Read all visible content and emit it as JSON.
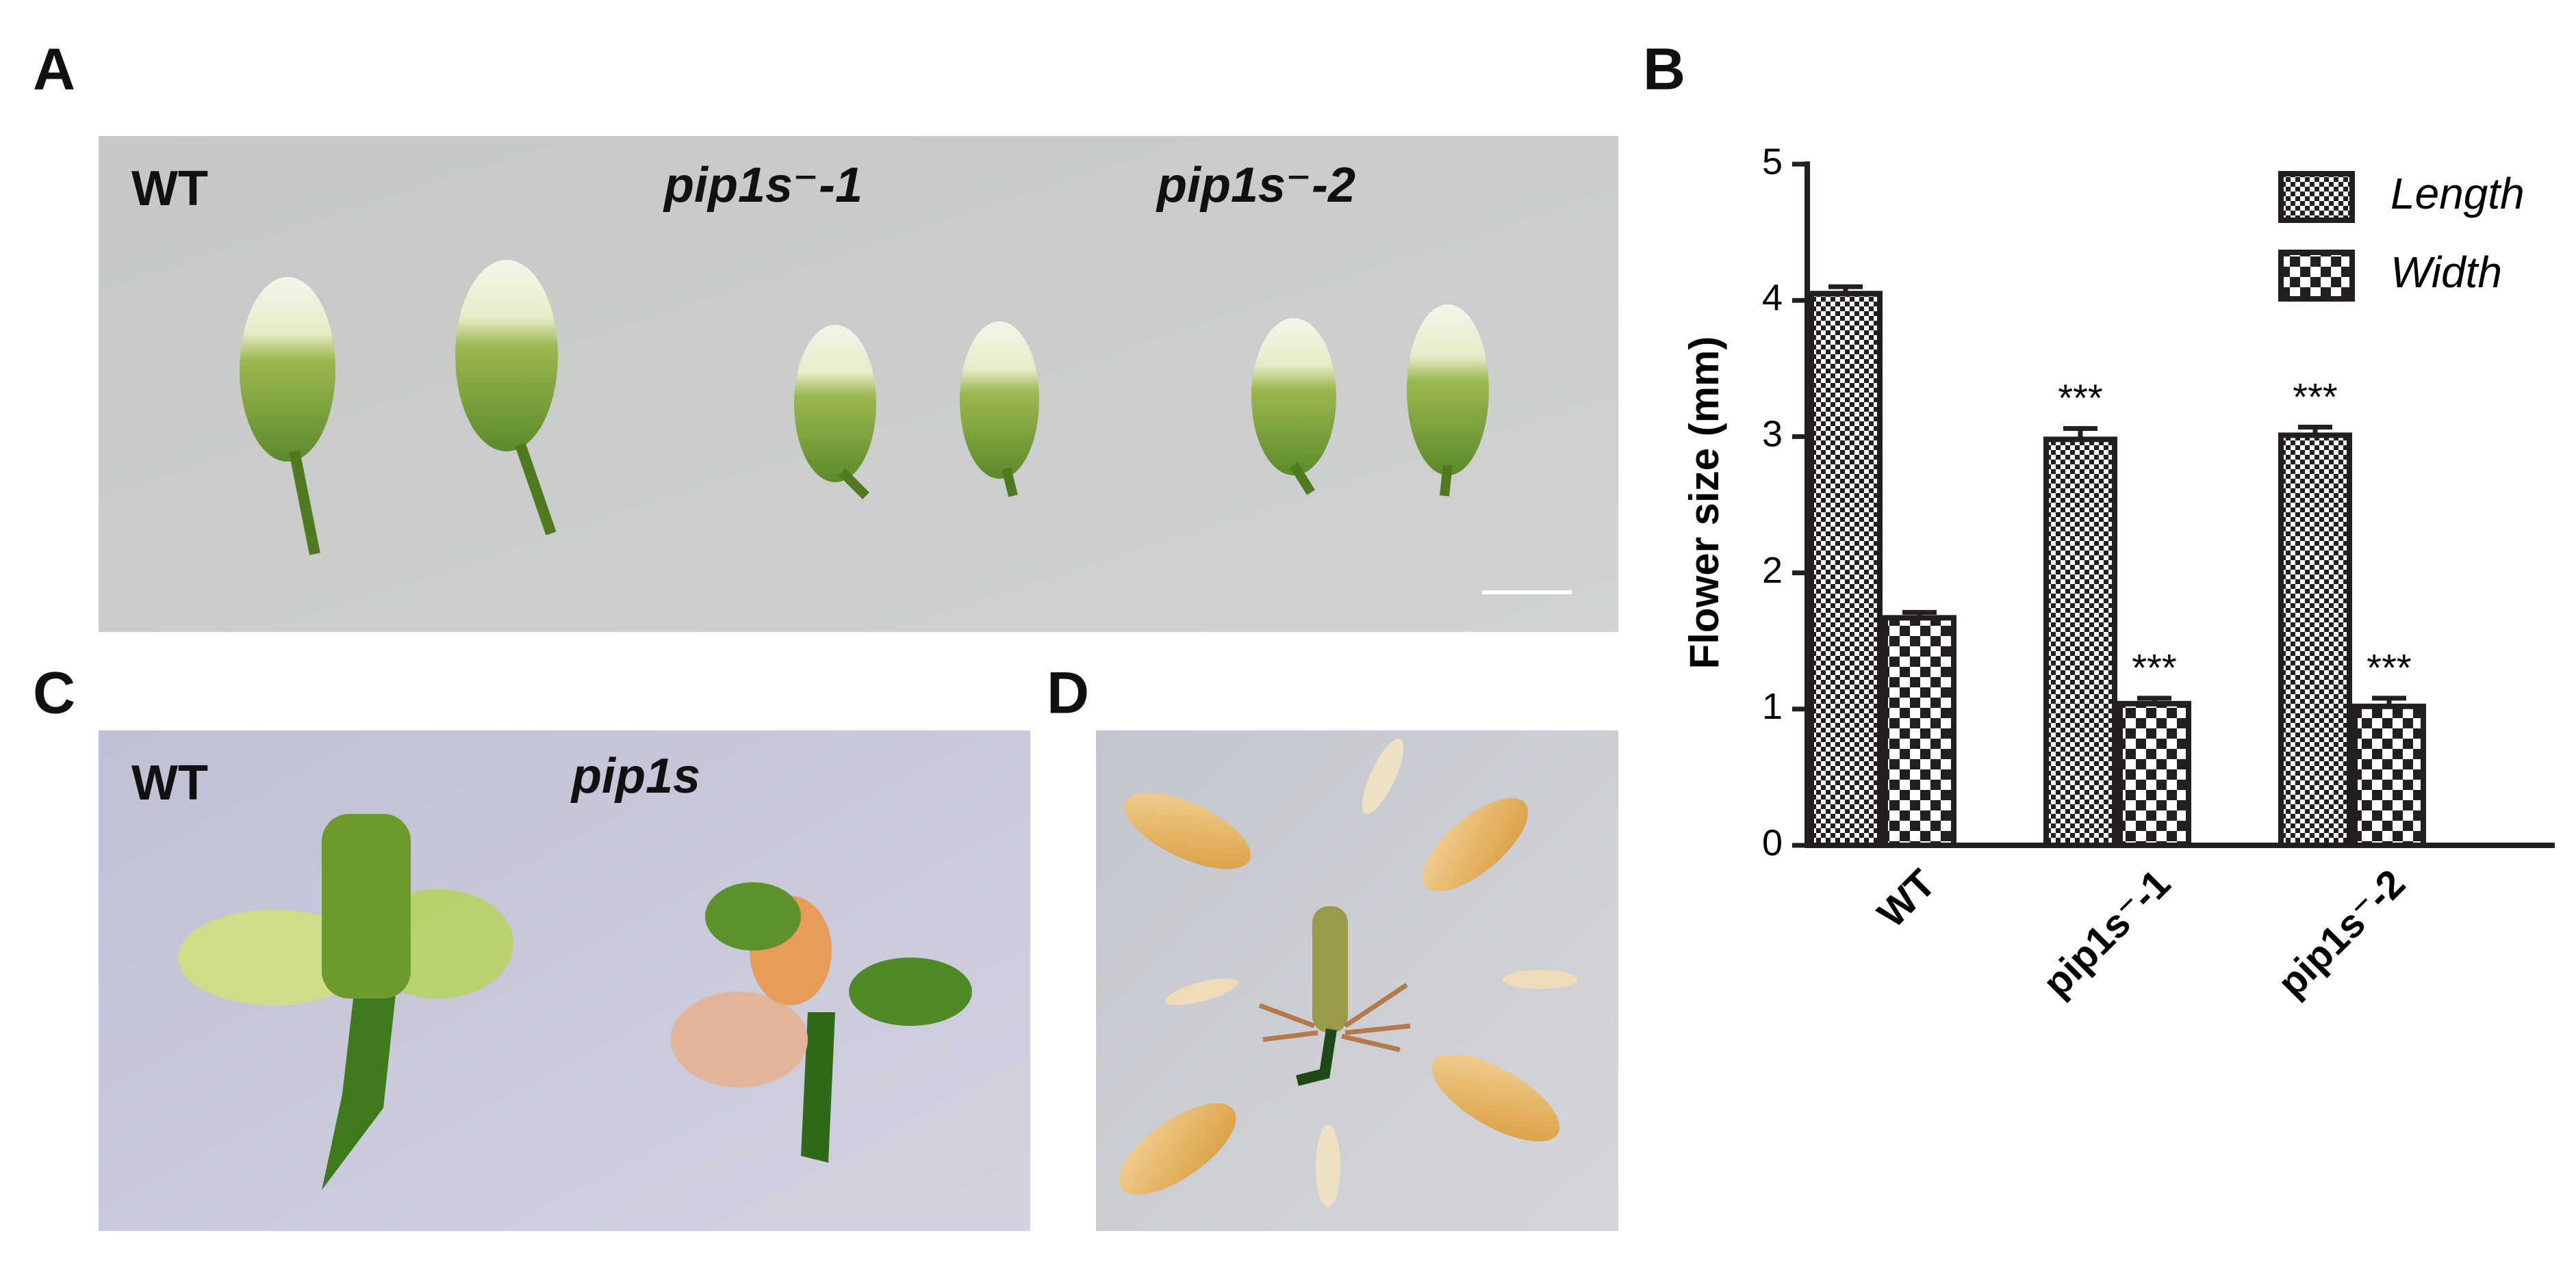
{
  "panel_a": {
    "label": "A",
    "texts": [
      "WT",
      "pip1s⁻-1",
      "pip1s⁻-2"
    ]
  },
  "panel_b": {
    "label": "B"
  },
  "panel_c": {
    "label": "C",
    "texts": [
      "WT",
      "pip1s"
    ]
  },
  "panel_d": {
    "label": "D"
  },
  "chart_data": {
    "type": "bar",
    "y_label": "Flower size (mm)",
    "categories": [
      "WT",
      "pip1s⁻-1",
      "pip1s⁻-2"
    ],
    "series": [
      {
        "name": "Length",
        "color": "#231f20",
        "pattern": "fine-check",
        "values": [
          4.05,
          2.98,
          3.01
        ],
        "errors": [
          0.05,
          0.08,
          0.06
        ],
        "annotations": [
          null,
          "***",
          "***"
        ]
      },
      {
        "name": "Width",
        "color": "#231f20",
        "pattern": "coarse-check",
        "values": [
          1.67,
          1.04,
          1.02
        ],
        "errors": [
          0.04,
          0.04,
          0.06
        ],
        "annotations": [
          null,
          "***",
          "***"
        ]
      }
    ],
    "ylim": [
      0,
      5
    ],
    "yticks": [
      0,
      1,
      2,
      3,
      4,
      5
    ],
    "grid": false,
    "legend": "top-right"
  }
}
